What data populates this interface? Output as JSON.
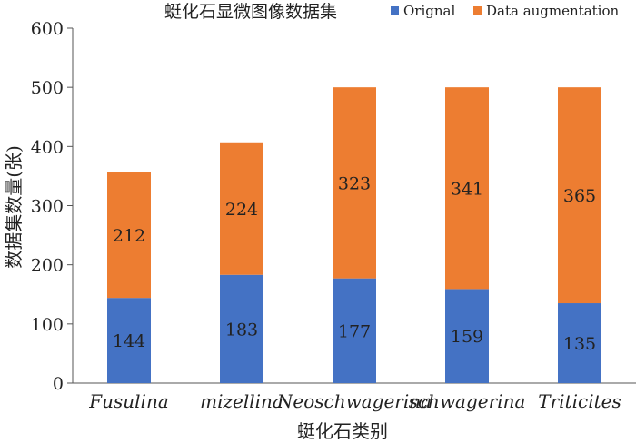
{
  "chart_data": {
    "type": "bar",
    "stacked": true,
    "title": "蜓化石显微图像数据集",
    "xlabel": "蜓化石类别",
    "ylabel": "数据集数量(张)",
    "categories": [
      "Fusulina",
      "mizellina",
      "Neoschwagerina",
      "schwagerina",
      "Triticites"
    ],
    "series": [
      {
        "name": "Orignal",
        "values": [
          144,
          183,
          177,
          159,
          135
        ],
        "color": "#4472C4"
      },
      {
        "name": "Data augmentation",
        "values": [
          212,
          224,
          323,
          341,
          365
        ],
        "color": "#ED7D31"
      }
    ],
    "ylim": [
      0,
      600
    ],
    "yticks": [
      "0",
      "100",
      "200",
      "300",
      "400",
      "500",
      "600"
    ],
    "grid": false,
    "legend": "top-right",
    "data_labels": true
  }
}
